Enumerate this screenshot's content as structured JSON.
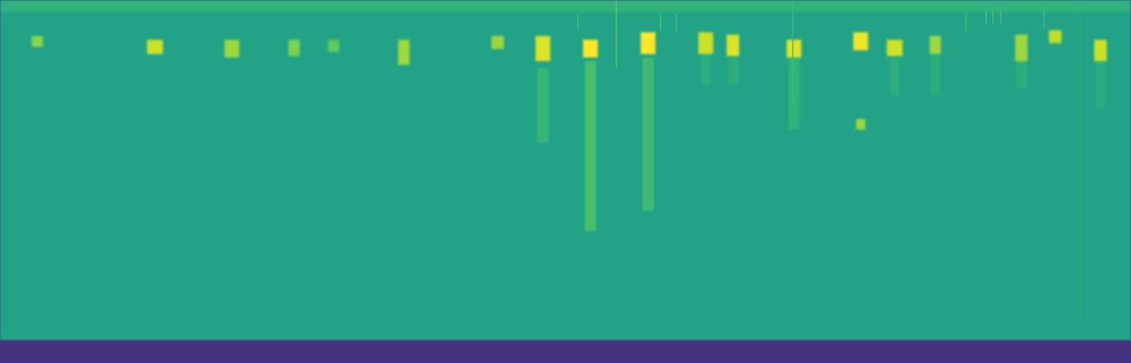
{
  "chart_data": {
    "type": "spectrogram",
    "tick_labels": false,
    "grid": false,
    "xlim": [
      0,
      100
    ],
    "ylim": [
      0,
      100
    ],
    "color_range": [
      0,
      1
    ],
    "noise_floor": 0.58,
    "bands": {
      "freq_low": [
        96.5
      ],
      "freq_high": [
        100
      ],
      "values": [
        0.64
      ]
    },
    "events": {
      "time": [
        3.3,
        13.7,
        20.5,
        26.0,
        29.5,
        35.7,
        44.0,
        48.0,
        52.2,
        57.3,
        62.4,
        64.8,
        70.2,
        76.1,
        79.1,
        82.7,
        90.3,
        93.3,
        97.3,
        76.1
      ],
      "duration": [
        1.0,
        1.4,
        1.3,
        1.0,
        1.0,
        1.0,
        1.1,
        1.3,
        1.3,
        1.3,
        1.3,
        1.1,
        1.3,
        1.3,
        1.4,
        1.0,
        1.1,
        1.1,
        1.1,
        0.8
      ],
      "freq_low": [
        86.2,
        84.1,
        83.1,
        83.5,
        84.7,
        80.9,
        85.6,
        82.0,
        83.1,
        84.1,
        84.1,
        83.5,
        83.1,
        85.2,
        83.5,
        84.1,
        82.0,
        87.3,
        82.0,
        61.9
      ],
      "freq_high": [
        89.4,
        88.3,
        88.3,
        88.3,
        88.3,
        88.3,
        89.4,
        89.4,
        88.3,
        90.5,
        90.5,
        89.8,
        88.3,
        90.5,
        88.3,
        89.4,
        89.8,
        91.1,
        88.3,
        65.0
      ],
      "values": [
        0.82,
        0.92,
        0.85,
        0.8,
        0.75,
        0.85,
        0.85,
        0.95,
        1.0,
        1.0,
        0.92,
        0.95,
        0.95,
        0.98,
        0.92,
        0.85,
        0.85,
        0.9,
        0.92,
        0.85
      ]
    },
    "tails": {
      "time": [
        48.0,
        52.2,
        57.3,
        62.4,
        64.8,
        70.2,
        79.1,
        82.7,
        90.3,
        97.3
      ],
      "duration": [
        1.0,
        1.0,
        1.0,
        0.8,
        0.8,
        1.0,
        0.8,
        0.8,
        0.8,
        0.8
      ],
      "freq_low": [
        58,
        32,
        38,
        75,
        75,
        62,
        72,
        72,
        74,
        68
      ],
      "freq_high": [
        80,
        82,
        83,
        84,
        83,
        83,
        83,
        84,
        82,
        82
      ],
      "values": [
        0.68,
        0.72,
        0.7,
        0.64,
        0.64,
        0.66,
        0.64,
        0.64,
        0.64,
        0.63
      ]
    },
    "clicks": {
      "time": [
        54.5,
        70.1,
        95.5,
        51.1,
        58.4,
        59.8,
        85.4,
        87.2,
        87.8,
        88.5,
        92.3
      ],
      "freq_low": [
        80,
        70,
        5,
        91,
        91,
        91,
        91,
        93,
        93,
        93,
        92
      ],
      "freq_high": [
        100,
        100,
        100,
        96,
        96,
        96,
        96,
        97,
        97,
        97,
        97
      ],
      "values": [
        0.75,
        0.68,
        0.62,
        0.7,
        0.72,
        0.7,
        0.72,
        0.75,
        0.72,
        0.72,
        0.7
      ]
    }
  }
}
